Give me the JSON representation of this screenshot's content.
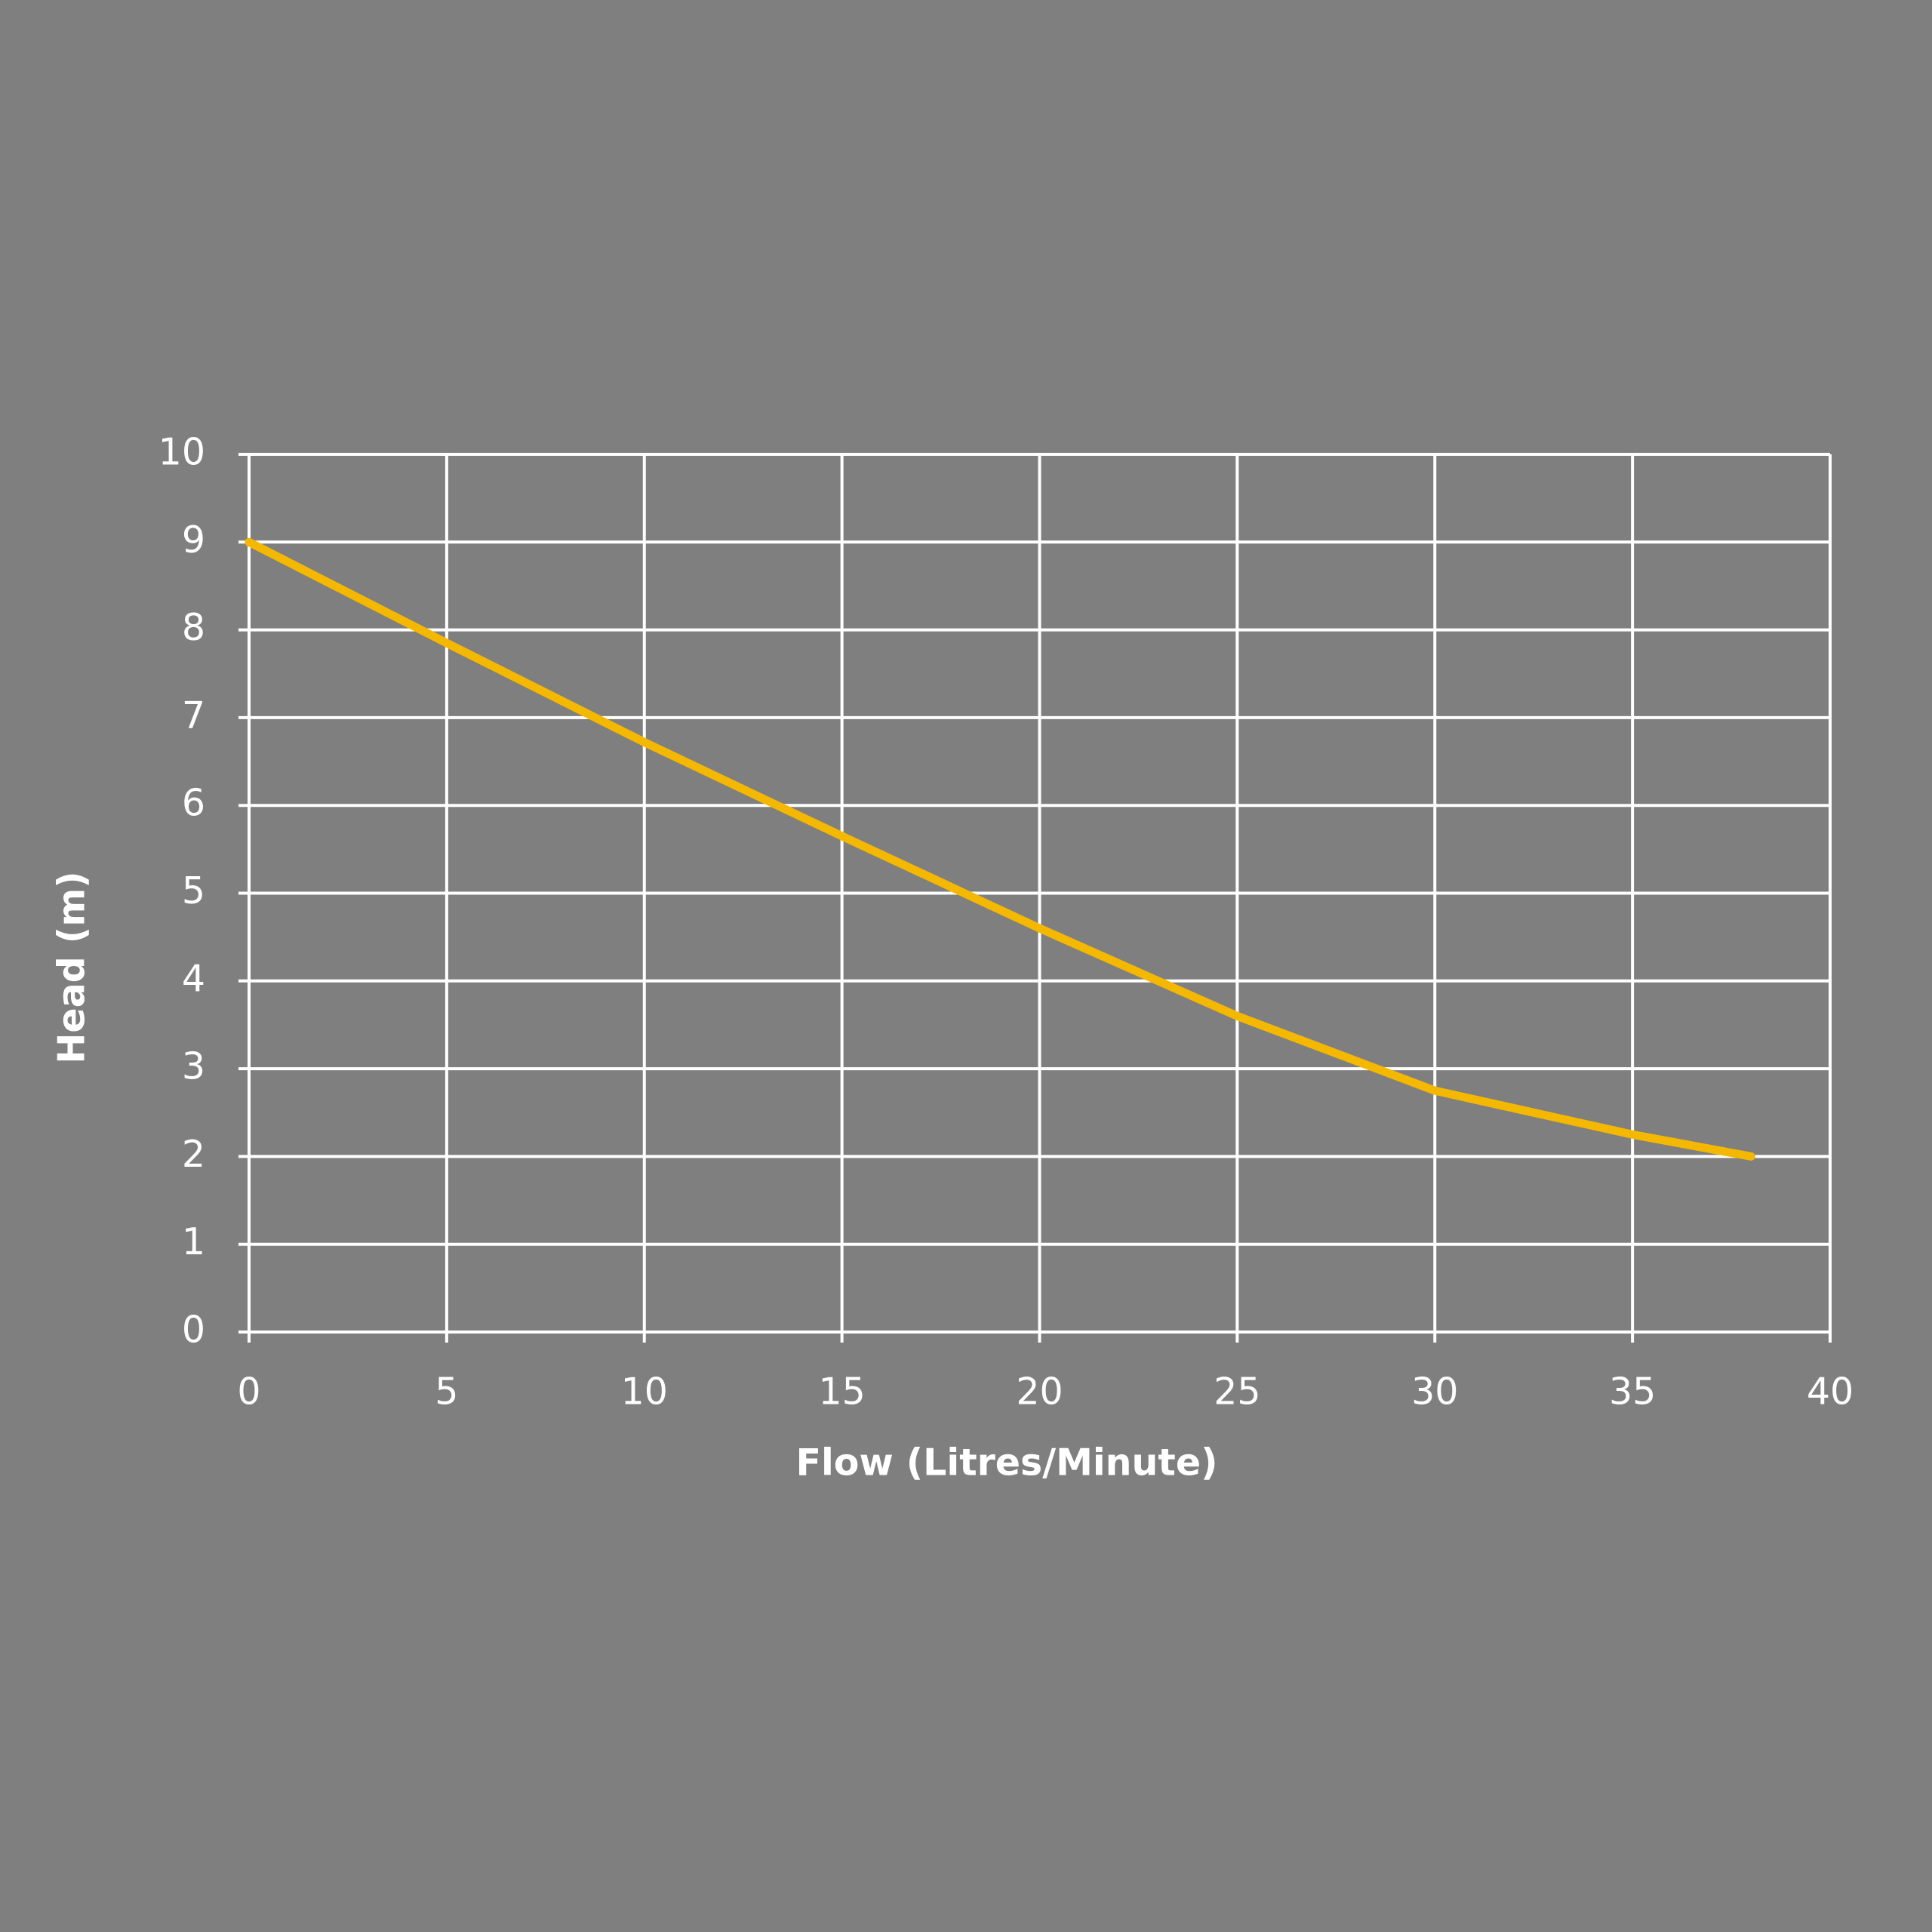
{
  "chart_data": {
    "type": "line",
    "x_label": "Flow (Litres/Minute)",
    "y_label": "Head (m)",
    "x": [
      0,
      5,
      10,
      15,
      20,
      25,
      30,
      35,
      38
    ],
    "values": [
      9,
      7.85,
      6.72,
      5.65,
      4.6,
      3.6,
      2.75,
      2.25,
      2.0
    ],
    "color": "#f5b800",
    "xlim": [
      0,
      40
    ],
    "xticks": [
      0,
      5,
      10,
      15,
      20,
      25,
      30,
      35,
      40
    ],
    "ylim": [
      0,
      10
    ],
    "yticks": [
      0,
      1,
      2,
      3,
      4,
      5,
      6,
      7,
      8,
      9,
      10
    ],
    "grid": true
  }
}
